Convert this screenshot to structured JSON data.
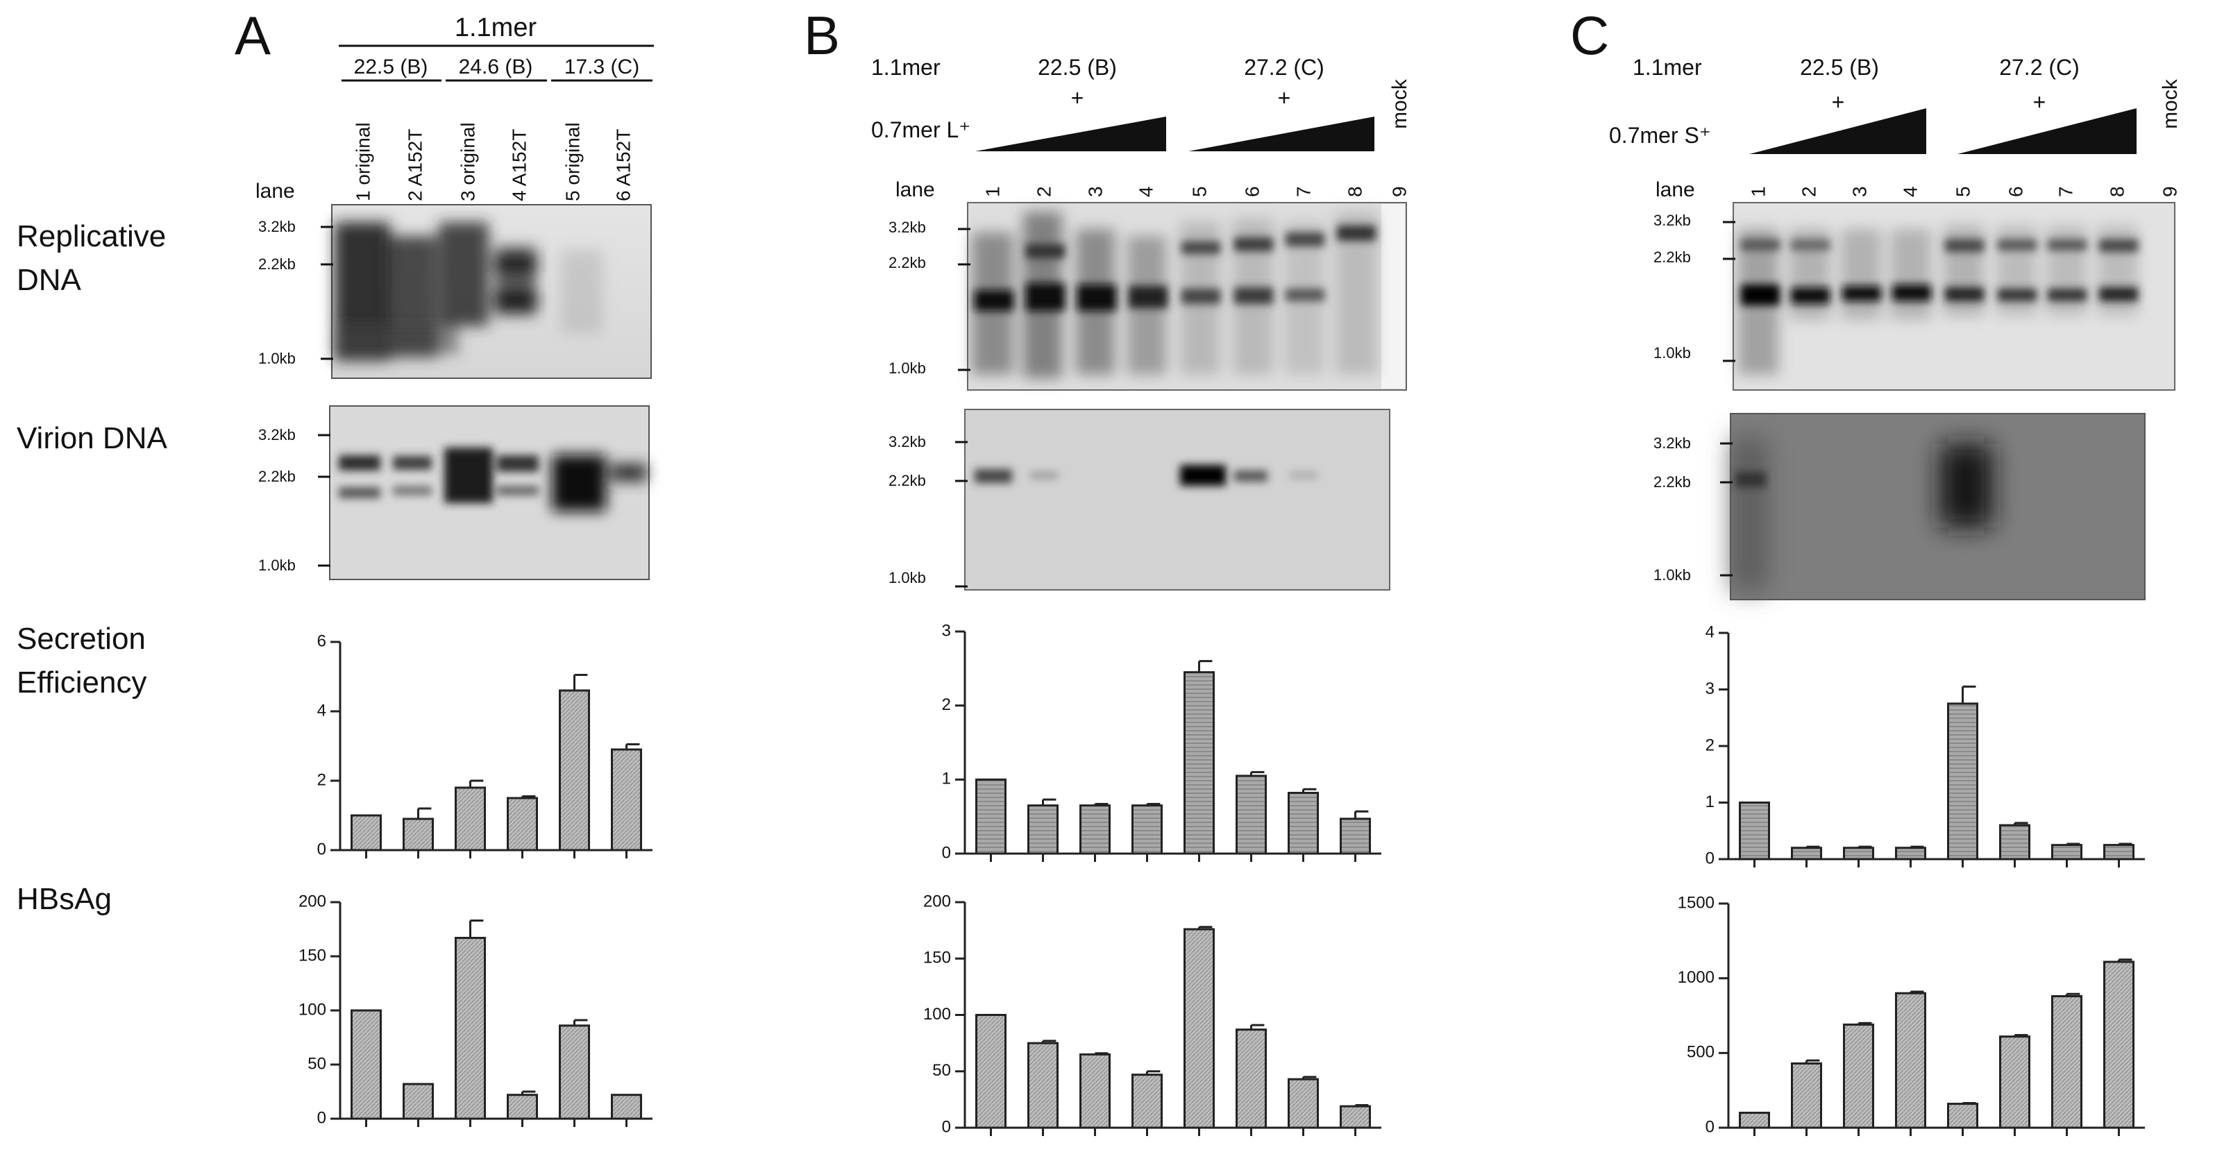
{
  "row_labels": {
    "replicative_line1": "Replicative",
    "replicative_line2": "DNA",
    "virion": "Virion DNA",
    "secretion_line1": "Secretion",
    "secretion_line2": "Efficiency",
    "hbsag": "HBsAg"
  },
  "markers": {
    "m32": "3.2kb",
    "m22": "2.2kb",
    "m10": "1.0kb"
  },
  "panelA": {
    "letter": "A",
    "construct": "1.1mer",
    "groups": [
      "22.5 (B)",
      "24.6 (B)",
      "17.3 (C)"
    ],
    "lane_word": "lane",
    "lanes": [
      "1 original",
      "2  A152T",
      "3 original",
      "4  A152T",
      "5 original",
      "6  A152T"
    ]
  },
  "panelB": {
    "letter": "B",
    "construct": "1.1mer",
    "groups": [
      "22.5 (B)",
      "27.2 (C)"
    ],
    "plus": "+",
    "cotransfect": "0.7mer L⁺",
    "lane_word": "lane",
    "lanes": [
      "1",
      "2",
      "3",
      "4",
      "5",
      "6",
      "7",
      "8",
      "9"
    ],
    "mock": "mock"
  },
  "panelC": {
    "letter": "C",
    "construct": "1.1mer",
    "groups": [
      "22.5 (B)",
      "27.2 (C)"
    ],
    "plus": "+",
    "cotransfect": "0.7mer S⁺",
    "lane_word": "lane",
    "lanes": [
      "1",
      "2",
      "3",
      "4",
      "5",
      "6",
      "7",
      "8",
      "9"
    ],
    "mock": "mock"
  },
  "chart_data": [
    {
      "id": "A-secretion",
      "type": "bar",
      "panel": "A",
      "row": "Secretion Efficiency",
      "categories": [
        "1",
        "2",
        "3",
        "4",
        "5",
        "6"
      ],
      "values": [
        1.0,
        0.9,
        1.8,
        1.5,
        4.6,
        2.9
      ],
      "errors": [
        0,
        0.3,
        0.2,
        0.05,
        0.45,
        0.15
      ],
      "ylim": [
        0,
        6
      ],
      "yticks": [
        0,
        2,
        4,
        6
      ]
    },
    {
      "id": "A-hbsag",
      "type": "bar",
      "panel": "A",
      "row": "HBsAg",
      "categories": [
        "1",
        "2",
        "3",
        "4",
        "5",
        "6"
      ],
      "values": [
        100,
        32,
        167,
        22,
        86,
        22
      ],
      "errors": [
        0,
        0,
        16,
        3,
        5,
        0
      ],
      "ylim": [
        0,
        200
      ],
      "yticks": [
        0,
        50,
        100,
        150,
        200
      ]
    },
    {
      "id": "B-secretion",
      "type": "bar",
      "panel": "B",
      "row": "Secretion Efficiency",
      "categories": [
        "1",
        "2",
        "3",
        "4",
        "5",
        "6",
        "7",
        "8"
      ],
      "values": [
        1.0,
        0.65,
        0.65,
        0.65,
        2.45,
        1.05,
        0.82,
        0.47
      ],
      "errors": [
        0,
        0.08,
        0.02,
        0.02,
        0.15,
        0.05,
        0.05,
        0.1
      ],
      "ylim": [
        0,
        3
      ],
      "yticks": [
        0,
        1,
        2,
        3
      ]
    },
    {
      "id": "B-hbsag",
      "type": "bar",
      "panel": "B",
      "row": "HBsAg",
      "categories": [
        "1",
        "2",
        "3",
        "4",
        "5",
        "6",
        "7",
        "8"
      ],
      "values": [
        100,
        75,
        65,
        47,
        176,
        87,
        43,
        19
      ],
      "errors": [
        0,
        2,
        1,
        3,
        2,
        4,
        2,
        1
      ],
      "ylim": [
        0,
        200
      ],
      "yticks": [
        0,
        50,
        100,
        150,
        200
      ]
    },
    {
      "id": "C-secretion",
      "type": "bar",
      "panel": "C",
      "row": "Secretion Efficiency",
      "categories": [
        "1",
        "2",
        "3",
        "4",
        "5",
        "6",
        "7",
        "8"
      ],
      "values": [
        1.0,
        0.2,
        0.2,
        0.2,
        2.75,
        0.6,
        0.25,
        0.25
      ],
      "errors": [
        0,
        0.02,
        0.02,
        0.02,
        0.3,
        0.04,
        0.02,
        0.02
      ],
      "ylim": [
        0,
        4
      ],
      "yticks": [
        0,
        1,
        2,
        3,
        4
      ]
    },
    {
      "id": "C-hbsag",
      "type": "bar",
      "panel": "C",
      "row": "HBsAg",
      "categories": [
        "1",
        "2",
        "3",
        "4",
        "5",
        "6",
        "7",
        "8"
      ],
      "values": [
        100,
        430,
        690,
        900,
        160,
        610,
        880,
        1110
      ],
      "errors": [
        0,
        20,
        10,
        10,
        5,
        10,
        15,
        15
      ],
      "ylim": [
        0,
        1500
      ],
      "yticks": [
        0,
        500,
        1000,
        1500
      ]
    }
  ]
}
